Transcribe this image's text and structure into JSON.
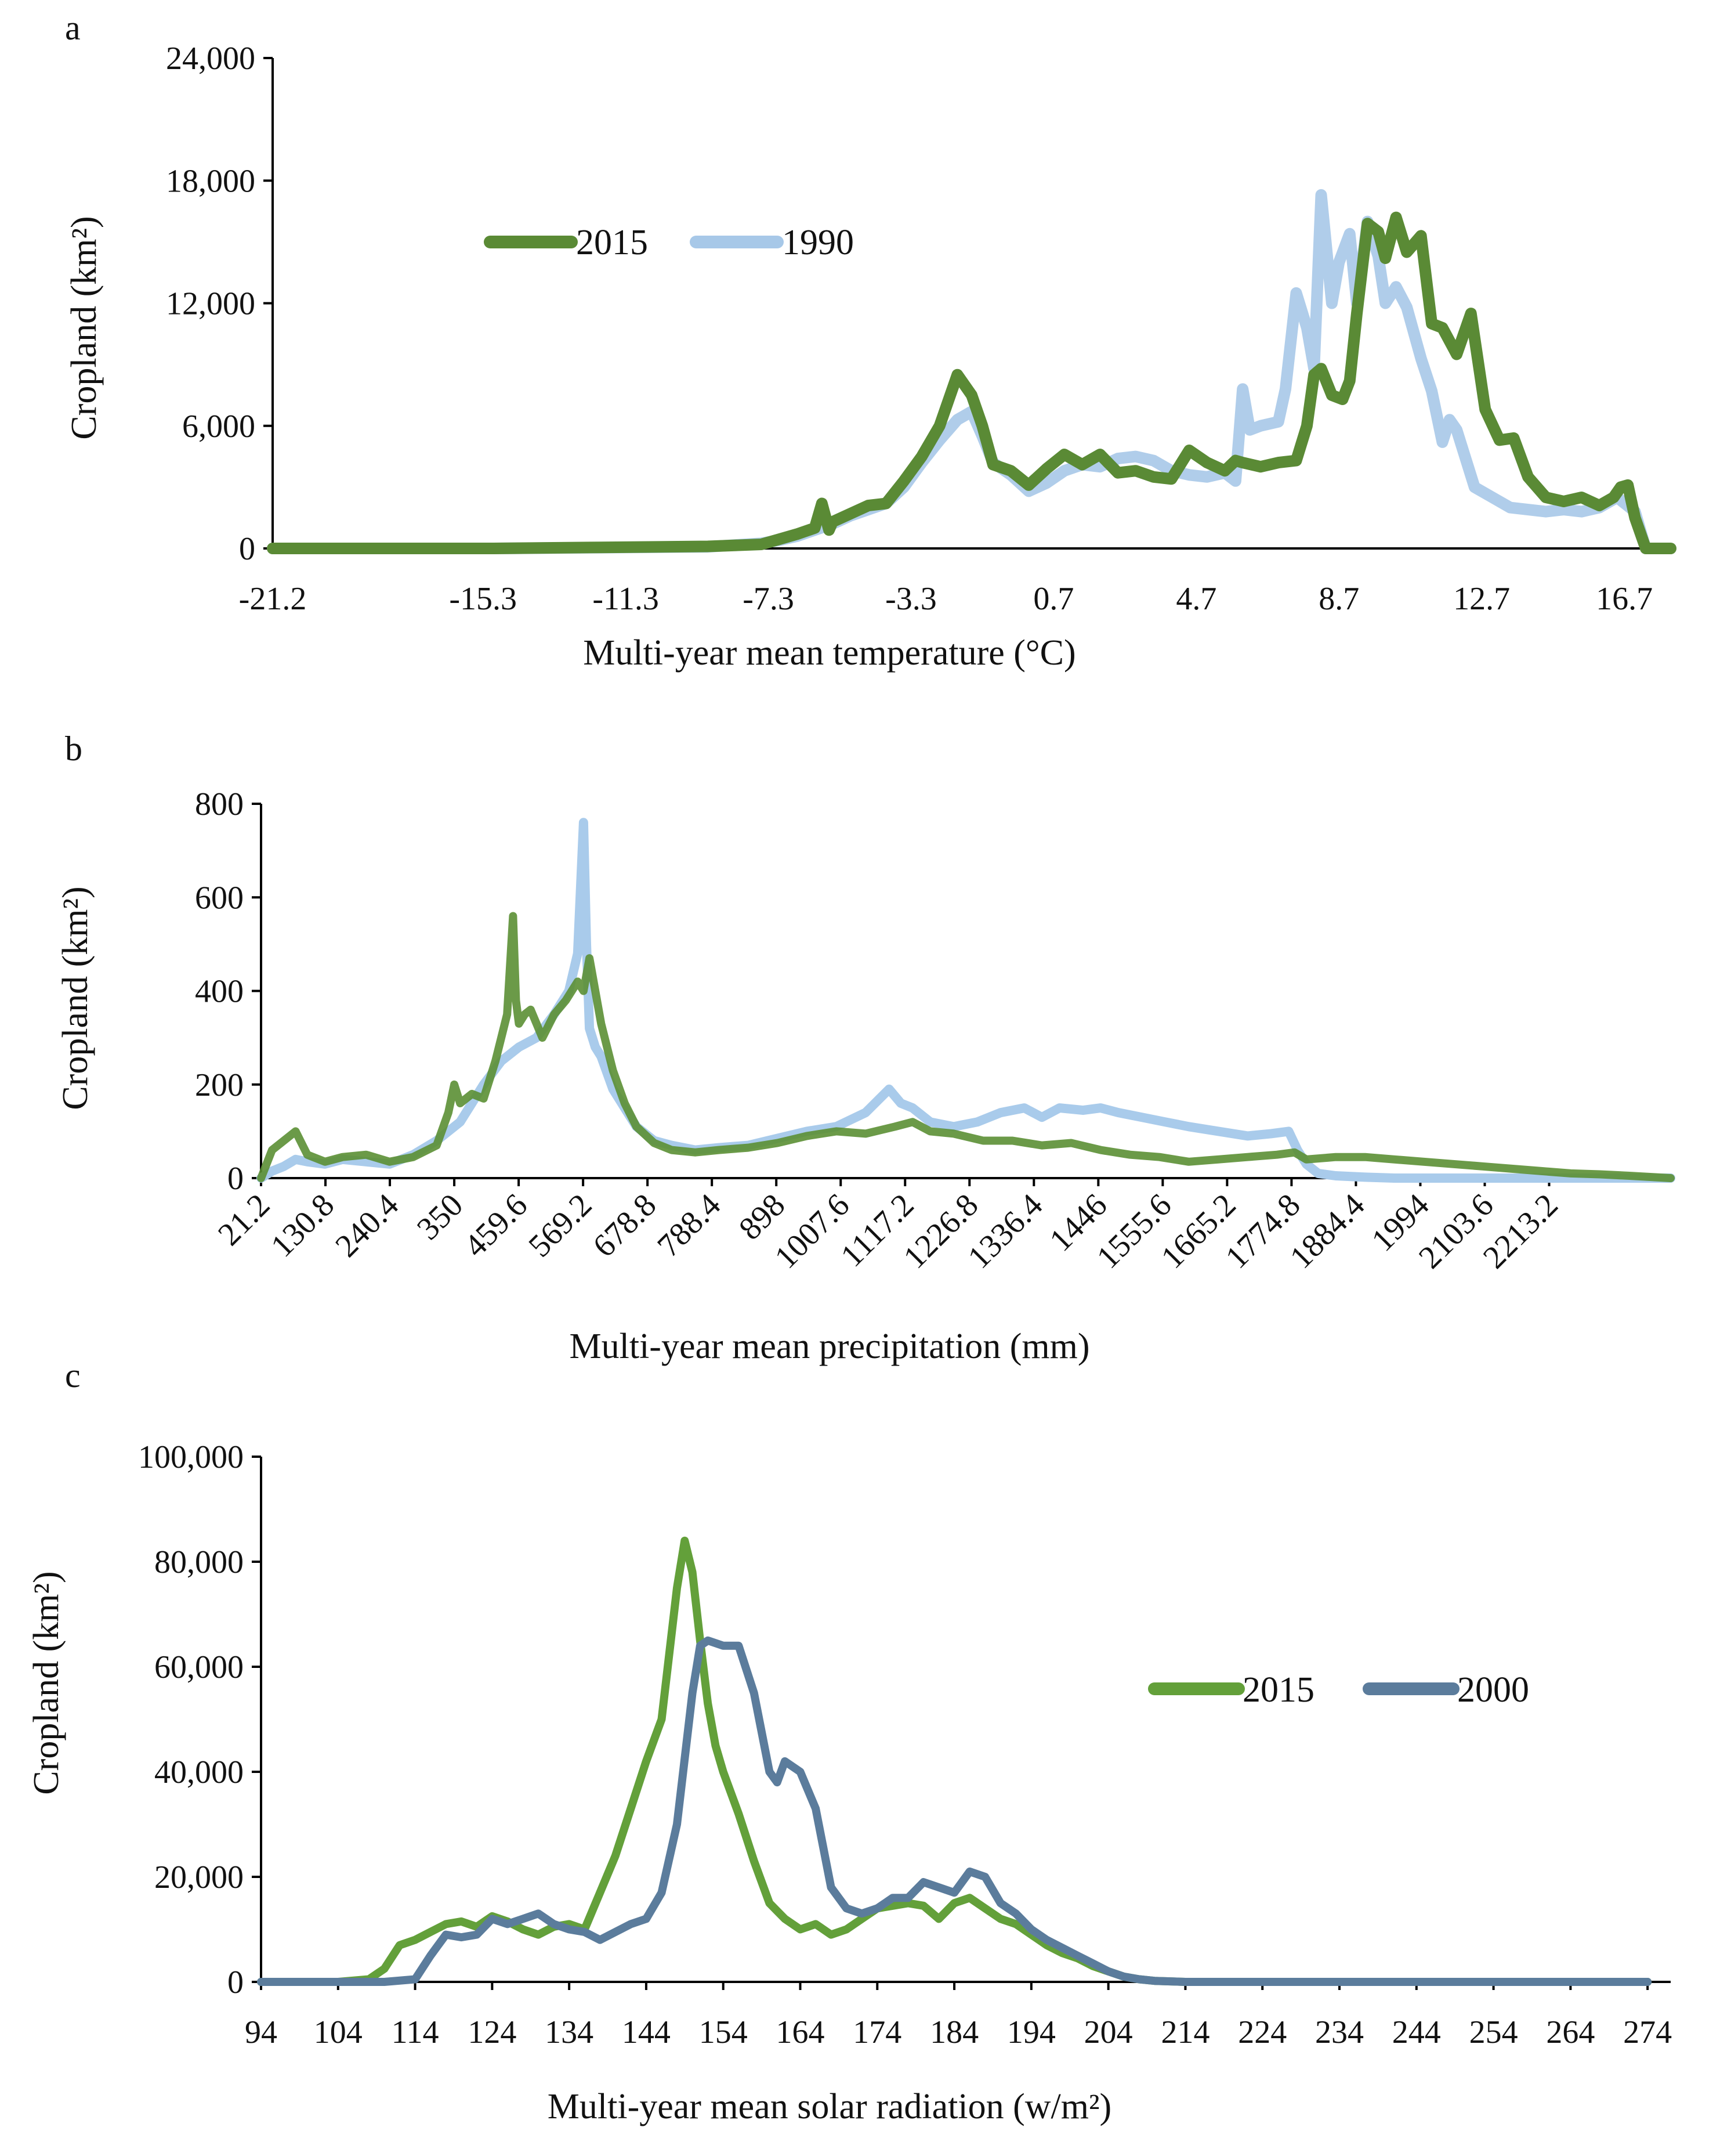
{
  "colors": {
    "green_2015_a": "#5a8a35",
    "blue_1990": "#a7c8e8",
    "green_2015_b": "#5b8f34",
    "blue_1990_b": "#a9cbeb",
    "green_2015_c": "#63a03a",
    "blue_2000": "#5b7c9c"
  },
  "chart_data": [
    {
      "panel": "a",
      "type": "line",
      "ylabel": "Cropland (km²)",
      "xlabel": "Multi-year mean temperature (°C)",
      "ylim": [
        0,
        24000
      ],
      "yticks": [
        "0",
        "6,000",
        "12,000",
        "18,000",
        "24,000"
      ],
      "ytick_values": [
        0,
        6000,
        12000,
        18000,
        24000
      ],
      "xlim": [
        -21.2,
        18.0
      ],
      "xticks": [
        "-21.2",
        "-15.3",
        "-11.3",
        "-7.3",
        "-3.3",
        "0.7",
        "4.7",
        "8.7",
        "12.7",
        "16.7"
      ],
      "xtick_values": [
        -21.2,
        -15.3,
        -11.3,
        -7.3,
        -3.3,
        0.7,
        4.7,
        8.7,
        12.7,
        16.7
      ],
      "legend": [
        "2015",
        "1990"
      ],
      "legend_position": "upper-left",
      "series": [
        {
          "name": "2015",
          "color": "#5a8a35",
          "x": [
            -21.2,
            -15.0,
            -12.0,
            -9.0,
            -7.5,
            -7.0,
            -6.5,
            -6.0,
            -5.8,
            -5.6,
            -5.5,
            -5.0,
            -4.5,
            -4.0,
            -3.5,
            -3.0,
            -2.5,
            -2.0,
            -1.6,
            -1.3,
            -1.0,
            -0.5,
            0.0,
            0.5,
            1.0,
            1.5,
            2.0,
            2.5,
            3.0,
            3.5,
            4.0,
            4.5,
            5.0,
            5.5,
            5.8,
            6.0,
            6.5,
            7.0,
            7.5,
            7.8,
            8.0,
            8.2,
            8.5,
            8.8,
            9.0,
            9.2,
            9.5,
            9.8,
            10.0,
            10.3,
            10.6,
            11.0,
            11.3,
            11.6,
            12.0,
            12.4,
            12.8,
            13.2,
            13.6,
            14.0,
            14.5,
            15.0,
            15.5,
            16.0,
            16.4,
            16.6,
            16.8,
            17.0,
            17.3,
            18.0
          ],
          "y": [
            0,
            0,
            50,
            100,
            200,
            450,
            700,
            1000,
            2200,
            900,
            1300,
            1700,
            2100,
            2200,
            3300,
            4500,
            6000,
            8500,
            7500,
            6000,
            4100,
            3800,
            3100,
            3900,
            4600,
            4100,
            4600,
            3700,
            3800,
            3500,
            3400,
            4800,
            4200,
            3800,
            4300,
            4200,
            4000,
            4200,
            4300,
            6000,
            8500,
            8800,
            7500,
            7300,
            8200,
            11500,
            15900,
            15500,
            14200,
            16200,
            14500,
            15300,
            11000,
            10800,
            9500,
            11500,
            6800,
            5300,
            5400,
            3500,
            2500,
            2300,
            2500,
            2100,
            2500,
            3000,
            3100,
            1500,
            0,
            0
          ]
        },
        {
          "name": "1990",
          "color": "#a7c8e8",
          "x": [
            -21.2,
            -15.0,
            -12.0,
            -9.0,
            -7.5,
            -7.0,
            -6.5,
            -6.0,
            -5.5,
            -5.0,
            -4.5,
            -4.0,
            -3.5,
            -3.0,
            -2.5,
            -2.0,
            -1.6,
            -1.3,
            -1.0,
            -0.5,
            0.0,
            0.5,
            1.0,
            1.5,
            2.0,
            2.5,
            3.0,
            3.5,
            4.0,
            4.5,
            5.0,
            5.5,
            5.8,
            6.0,
            6.2,
            6.5,
            7.0,
            7.2,
            7.5,
            7.8,
            8.0,
            8.2,
            8.5,
            8.7,
            9.0,
            9.2,
            9.5,
            9.8,
            10.0,
            10.3,
            10.6,
            11.0,
            11.3,
            11.6,
            11.8,
            12.0,
            12.5,
            13.0,
            13.5,
            14.0,
            14.5,
            15.0,
            15.5,
            16.0,
            16.5,
            17.0,
            17.3,
            18.0
          ],
          "y": [
            0,
            0,
            40,
            80,
            250,
            400,
            600,
            900,
            1200,
            1600,
            1900,
            2200,
            3000,
            4200,
            5300,
            6300,
            6700,
            5500,
            4200,
            3600,
            2800,
            3200,
            3800,
            4100,
            4000,
            4400,
            4500,
            4300,
            3800,
            3600,
            3500,
            3700,
            3300,
            7800,
            5800,
            6000,
            6200,
            7800,
            12500,
            10800,
            8800,
            17300,
            12000,
            14000,
            15400,
            12000,
            16000,
            14300,
            12000,
            12800,
            11800,
            9300,
            7700,
            5200,
            6300,
            5800,
            3000,
            2500,
            2000,
            1900,
            1800,
            1900,
            1800,
            2000,
            2500,
            1800,
            0,
            0
          ]
        }
      ]
    },
    {
      "panel": "b",
      "type": "line",
      "ylabel": "Cropland (km²)",
      "xlabel": "Multi-year mean precipitation (mm)",
      "ylim": [
        0,
        800
      ],
      "yticks": [
        "0",
        "200",
        "400",
        "600",
        "800"
      ],
      "ytick_values": [
        0,
        200,
        400,
        600,
        800
      ],
      "xlim": [
        21.2,
        2420
      ],
      "xticks": [
        "21.2",
        "130.8",
        "240.4",
        "350",
        "459.6",
        "569.2",
        "678.8",
        "788.4",
        "898",
        "1007.6",
        "1117.2",
        "1226.8",
        "1336.4",
        "1446",
        "1555.6",
        "1665.2",
        "1774.8",
        "1884.4",
        "1994",
        "2103.6",
        "2213.2"
      ],
      "xtick_values": [
        21.2,
        130.8,
        240.4,
        350,
        459.6,
        569.2,
        678.8,
        788.4,
        898,
        1007.6,
        1117.2,
        1226.8,
        1336.4,
        1446,
        1555.6,
        1665.2,
        1774.8,
        1884.4,
        1994,
        2103.6,
        2213.2
      ],
      "series": [
        {
          "name": "1990",
          "color": "#a9cbeb",
          "x": [
            21.2,
            40,
            60,
            80,
            100,
            130,
            160,
            200,
            240,
            280,
            320,
            360,
            400,
            430,
            460,
            490,
            520,
            545,
            560,
            570,
            575,
            580,
            590,
            600,
            620,
            640,
            660,
            690,
            720,
            760,
            800,
            850,
            900,
            950,
            1000,
            1050,
            1090,
            1110,
            1130,
            1160,
            1200,
            1240,
            1280,
            1320,
            1350,
            1380,
            1420,
            1450,
            1480,
            1520,
            1560,
            1600,
            1650,
            1700,
            1740,
            1770,
            1785,
            1800,
            1820,
            1850,
            1900,
            1950,
            2000,
            2100,
            2200,
            2300,
            2420
          ],
          "y": [
            0,
            15,
            25,
            40,
            35,
            30,
            40,
            35,
            30,
            50,
            80,
            120,
            200,
            250,
            280,
            300,
            350,
            400,
            480,
            760,
            500,
            320,
            280,
            260,
            190,
            150,
            110,
            80,
            70,
            60,
            65,
            70,
            85,
            100,
            110,
            140,
            190,
            160,
            150,
            120,
            110,
            120,
            140,
            150,
            130,
            150,
            145,
            150,
            140,
            130,
            120,
            110,
            100,
            90,
            95,
            100,
            60,
            30,
            10,
            5,
            2,
            0,
            0,
            0,
            0,
            0,
            0
          ]
        },
        {
          "name": "2015",
          "color": "#5b8f34",
          "x": [
            21.2,
            40,
            60,
            80,
            100,
            130,
            160,
            200,
            240,
            280,
            320,
            340,
            350,
            360,
            380,
            400,
            420,
            440,
            450,
            455,
            460,
            470,
            480,
            500,
            520,
            540,
            560,
            570,
            580,
            600,
            620,
            640,
            660,
            690,
            720,
            760,
            800,
            850,
            900,
            950,
            1000,
            1050,
            1100,
            1130,
            1160,
            1200,
            1250,
            1300,
            1350,
            1400,
            1450,
            1500,
            1550,
            1600,
            1650,
            1700,
            1750,
            1780,
            1800,
            1850,
            1900,
            1950,
            2000,
            2050,
            2100,
            2150,
            2200,
            2250,
            2300,
            2350,
            2420
          ],
          "y": [
            0,
            60,
            80,
            100,
            50,
            35,
            45,
            50,
            35,
            45,
            70,
            140,
            200,
            160,
            180,
            170,
            250,
            350,
            560,
            380,
            330,
            350,
            360,
            300,
            350,
            380,
            420,
            400,
            470,
            330,
            230,
            160,
            110,
            75,
            60,
            55,
            60,
            65,
            75,
            90,
            100,
            95,
            110,
            120,
            100,
            95,
            80,
            80,
            70,
            75,
            60,
            50,
            45,
            35,
            40,
            45,
            50,
            55,
            40,
            45,
            45,
            40,
            35,
            30,
            25,
            20,
            15,
            10,
            8,
            5,
            0
          ]
        }
      ]
    },
    {
      "panel": "c",
      "type": "line",
      "ylabel": "Cropland (km²)",
      "xlabel": "Multi-year mean solar radiation (w/m²)",
      "ylim": [
        0,
        100000
      ],
      "yticks": [
        "0",
        "20,000",
        "40,000",
        "60,000",
        "80,000",
        "100,000"
      ],
      "ytick_values": [
        0,
        20000,
        40000,
        60000,
        80000,
        100000
      ],
      "xlim": [
        94,
        277
      ],
      "xticks": [
        "94",
        "104",
        "114",
        "124",
        "134",
        "144",
        "154",
        "164",
        "174",
        "184",
        "194",
        "204",
        "214",
        "224",
        "234",
        "244",
        "254",
        "264",
        "274"
      ],
      "xtick_values": [
        94,
        104,
        114,
        124,
        134,
        144,
        154,
        164,
        174,
        184,
        194,
        204,
        214,
        224,
        234,
        244,
        254,
        264,
        274
      ],
      "legend": [
        "2015",
        "2000"
      ],
      "legend_position": "right",
      "series": [
        {
          "name": "2015",
          "color": "#63a03a",
          "x": [
            94,
            104,
            108,
            110,
            112,
            114,
            116,
            118,
            120,
            122,
            124,
            126,
            128,
            130,
            132,
            134,
            136,
            138,
            140,
            142,
            144,
            146,
            148,
            149,
            150,
            151,
            152,
            153,
            154,
            156,
            158,
            160,
            162,
            164,
            166,
            168,
            170,
            172,
            174,
            176,
            178,
            180,
            182,
            184,
            186,
            188,
            190,
            192,
            194,
            196,
            198,
            200,
            202,
            204,
            206,
            208,
            210,
            214,
            220,
            230,
            274
          ],
          "y": [
            0,
            0,
            500,
            2500,
            7000,
            8000,
            9500,
            11000,
            11500,
            10500,
            12500,
            11500,
            10000,
            9000,
            10500,
            11000,
            10000,
            17000,
            24000,
            33000,
            42000,
            50000,
            75000,
            84000,
            78000,
            65000,
            53000,
            45000,
            40000,
            32000,
            23000,
            15000,
            12000,
            10000,
            11000,
            9000,
            10000,
            12000,
            14000,
            14500,
            15000,
            14500,
            12000,
            15000,
            16000,
            14000,
            12000,
            11000,
            9000,
            7000,
            5500,
            4500,
            3000,
            2000,
            1000,
            500,
            200,
            0,
            0,
            0,
            0
          ]
        },
        {
          "name": "2000",
          "color": "#5b7c9c",
          "x": [
            94,
            110,
            114,
            116,
            118,
            120,
            122,
            124,
            126,
            128,
            130,
            132,
            134,
            136,
            138,
            140,
            142,
            144,
            146,
            148,
            150,
            151,
            152,
            154,
            156,
            158,
            160,
            161,
            162,
            164,
            166,
            168,
            170,
            172,
            174,
            176,
            178,
            180,
            182,
            184,
            186,
            188,
            190,
            192,
            194,
            196,
            198,
            200,
            202,
            204,
            206,
            208,
            210,
            214,
            220,
            230,
            274
          ],
          "y": [
            0,
            0,
            500,
            5000,
            9000,
            8500,
            9000,
            12000,
            11000,
            12000,
            13000,
            11000,
            10000,
            9500,
            8000,
            9500,
            11000,
            12000,
            17000,
            30000,
            55000,
            64000,
            65000,
            64000,
            64000,
            55000,
            40000,
            38000,
            42000,
            40000,
            33000,
            18000,
            14000,
            13000,
            14000,
            16000,
            16000,
            19000,
            18000,
            17000,
            21000,
            20000,
            15000,
            13000,
            10000,
            8000,
            6500,
            5000,
            3500,
            2000,
            1000,
            500,
            200,
            0,
            0,
            0,
            0
          ]
        }
      ]
    }
  ]
}
